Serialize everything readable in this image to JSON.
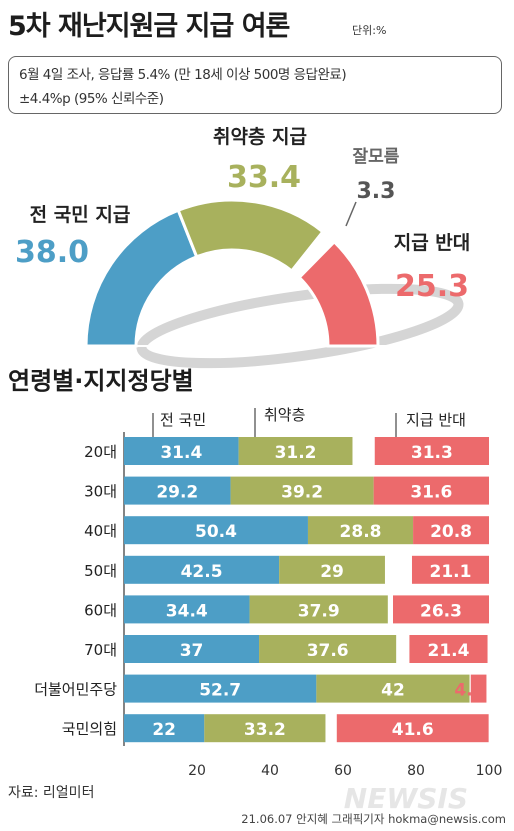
{
  "title": "5차 재난지원금 지급 여론",
  "unit": "단위:%",
  "info": {
    "line1": "6월 4일 조사, 응답률 5.4% (만 18세 이상 500명 응답완료)",
    "line2": "±4.4%p (95% 신뢰수준)"
  },
  "colors": {
    "all": "#4d9ec6",
    "vulnerable": "#a8b15d",
    "unknown": "#ffffff",
    "oppose": "#ec6a6c"
  },
  "gauge": {
    "items": [
      {
        "label": "전 국민 지급",
        "value": 38.0,
        "value_text": "38.0",
        "color": "#4d9ec6"
      },
      {
        "label": "취약층 지급",
        "value": 33.4,
        "value_text": "33.4",
        "color": "#a8b15d"
      },
      {
        "label": "잘모름",
        "value": 3.3,
        "value_text": "3.3",
        "color": "#ffffff"
      },
      {
        "label": "지급 반대",
        "value": 25.3,
        "value_text": "25.3",
        "color": "#ec6a6c"
      }
    ]
  },
  "section_title": "연령별·지지정당별",
  "chart_data": {
    "type": "bar",
    "stacked": true,
    "orientation": "horizontal",
    "categories": [
      "20대",
      "30대",
      "40대",
      "50대",
      "60대",
      "70대",
      "더불어민주당",
      "국민의힘"
    ],
    "series": [
      {
        "name": "전 국민",
        "color": "#4d9ec6",
        "values": [
          31.4,
          29.2,
          50.4,
          42.5,
          34.4,
          37,
          52.7,
          22
        ],
        "labels": [
          "31.4",
          "29.2",
          "50.4",
          "42.5",
          "34.4",
          "37",
          "52.7",
          "22"
        ]
      },
      {
        "name": "취약층",
        "color": "#a8b15d",
        "values": [
          31.2,
          39.2,
          28.8,
          29,
          37.9,
          37.6,
          42,
          33.2
        ],
        "labels": [
          "31.2",
          "39.2",
          "28.8",
          "29",
          "37.9",
          "37.6",
          "42",
          "33.2"
        ]
      },
      {
        "name": "잘모름",
        "color": "#ffffff",
        "values": [
          6.1,
          0,
          0,
          7.4,
          1.4,
          3.6,
          0.3,
          3.1
        ],
        "labels": [
          "",
          "",
          "",
          "",
          "",
          "",
          "",
          ""
        ]
      },
      {
        "name": "지급 반대",
        "color": "#ec6a6c",
        "values": [
          31.3,
          31.6,
          20.8,
          21.1,
          26.3,
          21.4,
          4.3,
          41.6
        ],
        "labels": [
          "31.3",
          "31.6",
          "20.8",
          "21.1",
          "26.3",
          "21.4",
          "4.3",
          "41.6"
        ]
      }
    ],
    "x_ticks": [
      "20",
      "40",
      "60",
      "80",
      "100"
    ],
    "xlim": [
      0,
      100
    ]
  },
  "source": "자료: 리얼미터",
  "credit": "21.06.07 안지혜 그래픽기자  hokma@newsis.com",
  "watermark": "NEWSIS"
}
